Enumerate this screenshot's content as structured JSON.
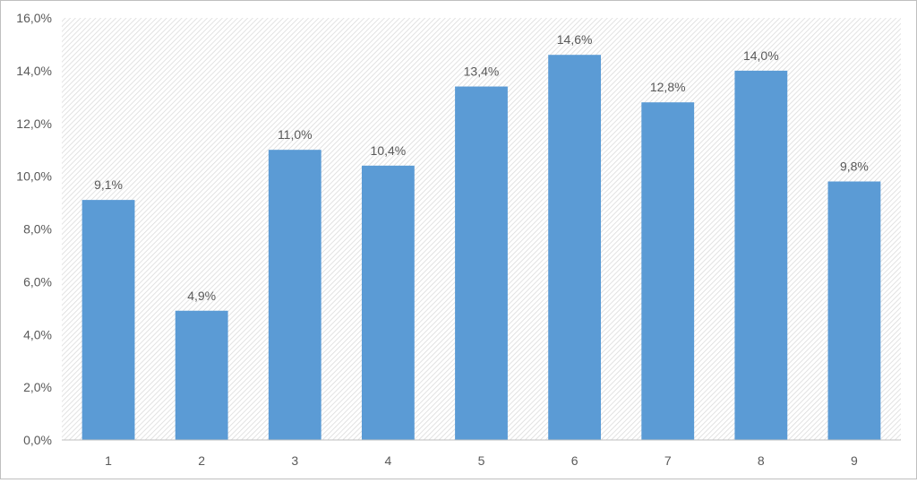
{
  "chart_data": {
    "type": "bar",
    "title": "",
    "xlabel": "",
    "ylabel": "",
    "categories": [
      "1",
      "2",
      "3",
      "4",
      "5",
      "6",
      "7",
      "8",
      "9"
    ],
    "values": [
      9.1,
      4.9,
      11.0,
      10.4,
      13.4,
      14.6,
      12.8,
      14.0,
      9.8
    ],
    "data_labels": [
      "9,1%",
      "4,9%",
      "11,0%",
      "10,4%",
      "13,4%",
      "14,6%",
      "12,8%",
      "14,0%",
      "9,8%"
    ],
    "ylim": [
      0,
      16
    ],
    "yticks": [
      0,
      2,
      4,
      6,
      8,
      10,
      12,
      14,
      16
    ],
    "ytick_labels": [
      "0,0%",
      "2,0%",
      "4,0%",
      "6,0%",
      "8,0%",
      "10,0%",
      "12,0%",
      "14,0%",
      "16,0%"
    ],
    "grid": false,
    "legend": "none",
    "bar_color": "#5b9bd5",
    "plot_background": "hatched light gray"
  }
}
